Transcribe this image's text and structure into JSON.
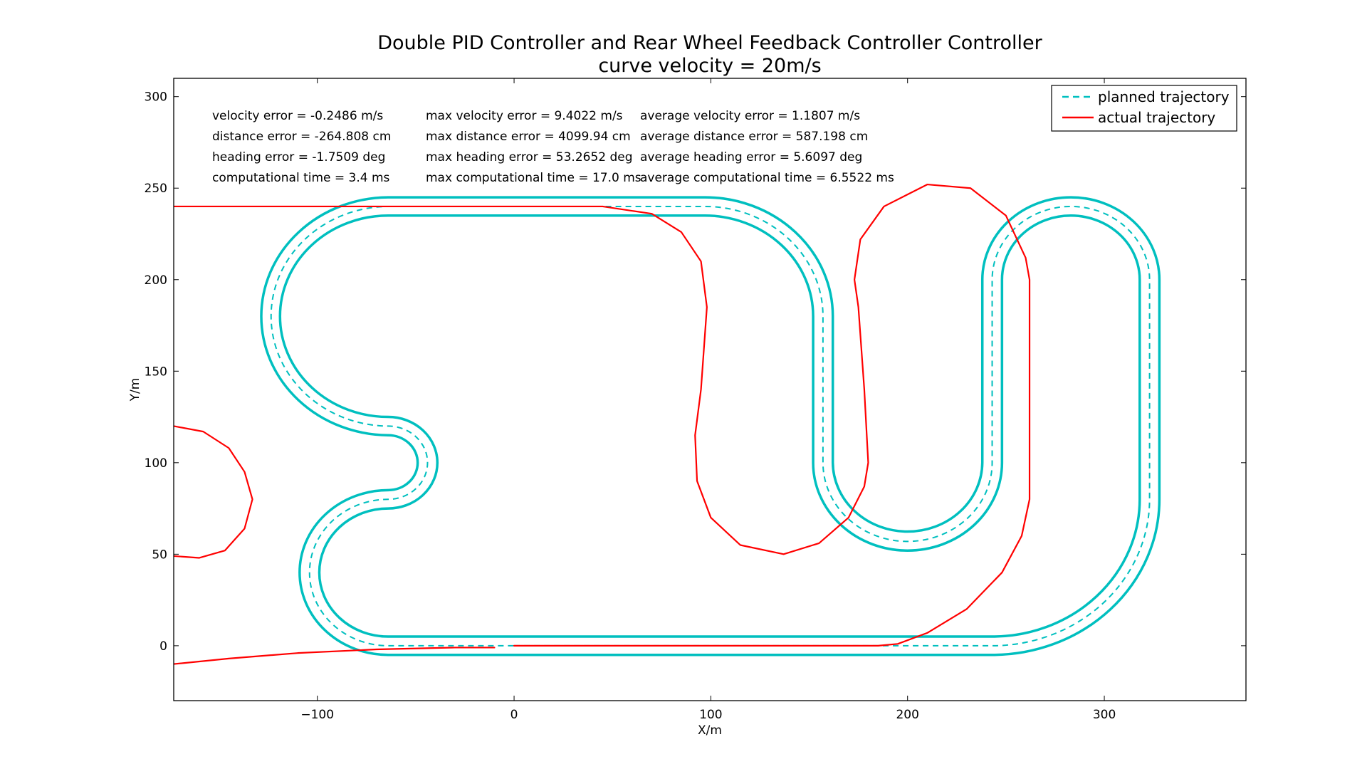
{
  "chart_data": {
    "type": "line",
    "title": "Double PID Controller and Rear Wheel Feedback Controller Controller",
    "subtitle": "curve velocity = 20m/s",
    "xlabel": "X/m",
    "ylabel": "Y/m",
    "xlim": [
      -173,
      372
    ],
    "ylim": [
      -30,
      310
    ],
    "xticks": [
      -100,
      0,
      100,
      200,
      300
    ],
    "xtick_labels": [
      "−100",
      "0",
      "100",
      "200",
      "300"
    ],
    "yticks": [
      0,
      50,
      100,
      150,
      200,
      250,
      300
    ],
    "ytick_labels": [
      "0",
      "50",
      "100",
      "150",
      "200",
      "250",
      "300"
    ],
    "grid": false,
    "legend_position": "top-right",
    "legend": [
      {
        "label": "planned trajectory",
        "style": "dashed",
        "color": "#00bfbf"
      },
      {
        "label": "actual trajectory",
        "style": "solid",
        "color": "#ff0000"
      }
    ],
    "annotations": [
      [
        "velocity error = -0.2486 m/s",
        "max velocity error = 9.4022 m/s",
        "average velocity error = 1.1807 m/s"
      ],
      [
        "distance error = -264.808 cm",
        "max distance error = 4099.94 cm",
        "average distance error = 587.198 cm"
      ],
      [
        "heading error = -1.7509 deg",
        "max heading error = 53.2652 deg",
        "average heading error = 5.6097 deg"
      ],
      [
        "computational time = 3.4 ms",
        "max computational time = 17.0 ms",
        "average computational time = 6.5522 ms"
      ]
    ],
    "track_half_width": 5,
    "series": [
      {
        "name": "planned trajectory",
        "color": "#00bfbf",
        "style": "dashed",
        "path": [
          [
            "M",
            0,
            0
          ],
          [
            "L",
            243,
            0
          ],
          [
            "A",
            80,
            0,
            323,
            80
          ],
          [
            "L",
            323,
            200
          ],
          [
            "A",
            40,
            0,
            283,
            240
          ],
          [
            "A",
            40,
            0,
            243,
            200
          ],
          [
            "L",
            243,
            100
          ],
          [
            "A",
            43,
            1,
            157,
            100
          ],
          [
            "L",
            157,
            180
          ],
          [
            "A",
            60,
            0,
            97,
            240
          ],
          [
            "L",
            -64,
            240
          ],
          [
            "A",
            60,
            0,
            -64,
            120
          ],
          [
            "A",
            20,
            1,
            -64,
            80
          ],
          [
            "A",
            40,
            0,
            -64,
            0
          ],
          [
            "L",
            0,
            0
          ]
        ]
      },
      {
        "name": "actual trajectory",
        "color": "#ff0000",
        "style": "solid",
        "segments": [
          [
            [
              -173,
              240
            ],
            [
              45,
              240
            ],
            [
              70,
              236
            ],
            [
              85,
              226
            ],
            [
              95,
              210
            ],
            [
              98,
              185
            ],
            [
              95,
              140
            ],
            [
              92,
              115
            ],
            [
              93,
              90
            ],
            [
              100,
              70
            ],
            [
              115,
              55
            ],
            [
              137,
              50
            ],
            [
              155,
              56
            ],
            [
              170,
              70
            ],
            [
              178,
              87
            ],
            [
              180,
              100
            ],
            [
              178,
              140
            ],
            [
              175,
              185
            ],
            [
              173,
              200
            ],
            [
              176,
              222
            ],
            [
              188,
              240
            ],
            [
              210,
              252
            ],
            [
              232,
              250
            ],
            [
              250,
              235
            ],
            [
              260,
              212
            ],
            [
              262,
              200
            ],
            [
              262,
              100
            ],
            [
              262,
              80
            ],
            [
              258,
              60
            ],
            [
              248,
              40
            ],
            [
              230,
              20
            ],
            [
              210,
              7
            ],
            [
              195,
              1
            ],
            [
              185,
              0
            ],
            [
              0,
              0
            ]
          ],
          [
            [
              -173,
              -10
            ],
            [
              -145,
              -7
            ],
            [
              -110,
              -4
            ],
            [
              -70,
              -2
            ],
            [
              -30,
              -1
            ],
            [
              -10,
              -1
            ]
          ],
          [
            [
              -173,
              120
            ],
            [
              -158,
              117
            ],
            [
              -145,
              108
            ],
            [
              -137,
              95
            ],
            [
              -133,
              80
            ],
            [
              -137,
              64
            ],
            [
              -147,
              52
            ],
            [
              -160,
              48
            ],
            [
              -173,
              49
            ]
          ]
        ]
      }
    ]
  }
}
